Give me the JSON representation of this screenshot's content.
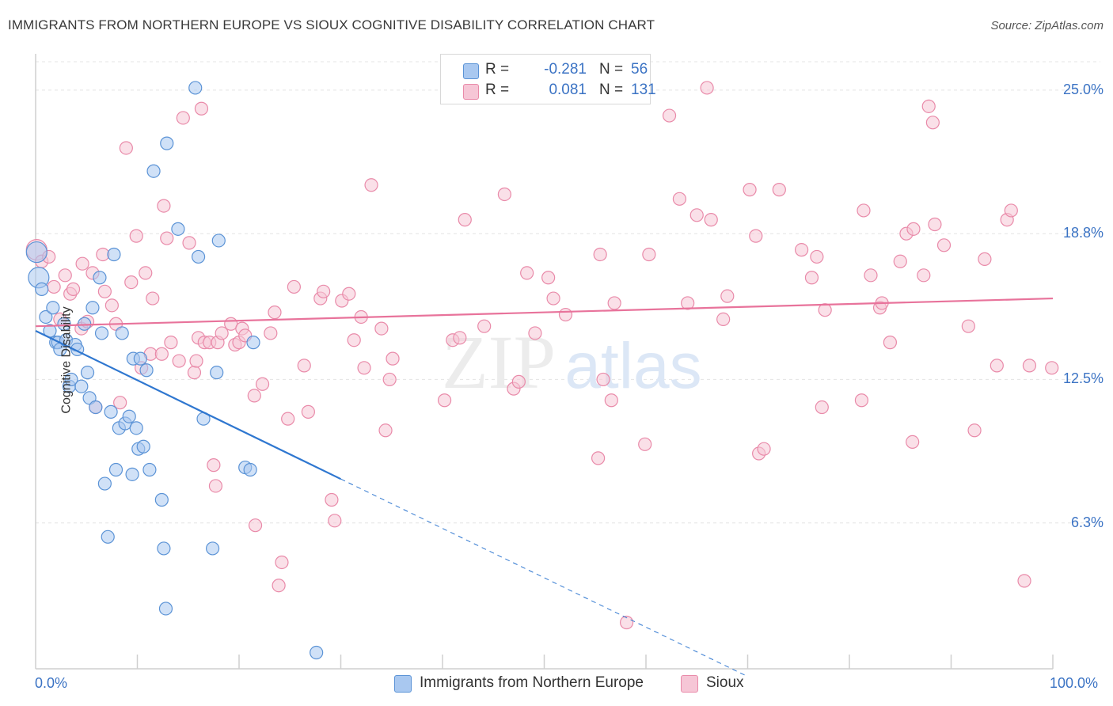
{
  "header": {
    "title": "IMMIGRANTS FROM NORTHERN EUROPE VS SIOUX COGNITIVE DISABILITY CORRELATION CHART",
    "source": "Source: ZipAtlas.com"
  },
  "watermark": {
    "part1": "ZIP",
    "part2": "atlas"
  },
  "legend": {
    "rows": [
      {
        "r_label": "R =",
        "r_value": "-0.281",
        "n_label": "N =",
        "n_value": "56",
        "color": "#a9c8f0"
      },
      {
        "r_label": "R =",
        "r_value": "0.081",
        "n_label": "N =",
        "n_value": "131",
        "color": "#f6bdd0"
      }
    ]
  },
  "colors": {
    "blue_fill": "#a9c8f0",
    "blue_stroke": "#5b93d6",
    "blue_line": "#2f77d0",
    "pink_fill": "#f6c6d6",
    "pink_stroke": "#e98aa9",
    "pink_line": "#e8739b",
    "axis_text": "#3b73c4",
    "grid": "#e4e4e4"
  },
  "chart_data": {
    "type": "scatter",
    "title": "IMMIGRANTS FROM NORTHERN EUROPE VS SIOUX COGNITIVE DISABILITY CORRELATION CHART",
    "xlabel": "",
    "ylabel": "Cognitive Disability",
    "xlim": [
      0,
      100
    ],
    "ylim": [
      0,
      26.5
    ],
    "x_tick_labels": {
      "left": "0.0%",
      "right": "100.0%"
    },
    "y_ticks": [
      {
        "value": 6.3,
        "label": "6.3%"
      },
      {
        "value": 12.5,
        "label": "12.5%"
      },
      {
        "value": 18.8,
        "label": "18.8%"
      },
      {
        "value": 25.0,
        "label": "25.0%"
      }
    ],
    "grid": true,
    "legend_position": "bottom",
    "series": [
      {
        "name": "Immigrants from Northern Europe",
        "color": "#a9c8f0",
        "trend": {
          "x0": 0,
          "y0": 14.6,
          "x1": 30,
          "y1": 8.2,
          "dash_to_x": 70
        },
        "points": [
          [
            0.1,
            18.0
          ],
          [
            0.3,
            16.9
          ],
          [
            0.6,
            16.4
          ],
          [
            1.0,
            15.2
          ],
          [
            1.4,
            14.6
          ],
          [
            1.7,
            15.6
          ],
          [
            2.0,
            14.1
          ],
          [
            2.2,
            14.1
          ],
          [
            2.4,
            13.8
          ],
          [
            2.8,
            14.9
          ],
          [
            3.0,
            14.2
          ],
          [
            3.3,
            12.2
          ],
          [
            3.5,
            12.5
          ],
          [
            3.9,
            14.0
          ],
          [
            4.1,
            13.8
          ],
          [
            4.5,
            12.2
          ],
          [
            4.8,
            14.9
          ],
          [
            5.1,
            12.8
          ],
          [
            5.3,
            11.7
          ],
          [
            5.6,
            15.6
          ],
          [
            5.9,
            11.3
          ],
          [
            6.3,
            16.9
          ],
          [
            6.5,
            14.5
          ],
          [
            6.8,
            8.0
          ],
          [
            7.1,
            5.7
          ],
          [
            7.4,
            11.1
          ],
          [
            7.7,
            17.9
          ],
          [
            7.9,
            8.6
          ],
          [
            8.2,
            10.4
          ],
          [
            8.5,
            14.5
          ],
          [
            8.8,
            10.6
          ],
          [
            9.2,
            10.9
          ],
          [
            9.5,
            8.4
          ],
          [
            9.6,
            13.4
          ],
          [
            9.9,
            10.4
          ],
          [
            10.1,
            9.5
          ],
          [
            10.3,
            13.4
          ],
          [
            10.6,
            9.6
          ],
          [
            10.9,
            12.9
          ],
          [
            11.2,
            8.6
          ],
          [
            11.6,
            21.5
          ],
          [
            12.4,
            7.3
          ],
          [
            12.6,
            5.2
          ],
          [
            12.8,
            2.6
          ],
          [
            12.9,
            22.7
          ],
          [
            14.0,
            19.0
          ],
          [
            15.7,
            25.1
          ],
          [
            16.0,
            17.8
          ],
          [
            16.5,
            10.8
          ],
          [
            17.4,
            5.2
          ],
          [
            17.8,
            12.8
          ],
          [
            18.0,
            18.5
          ],
          [
            20.6,
            8.7
          ],
          [
            21.1,
            8.6
          ],
          [
            21.4,
            14.1
          ],
          [
            27.6,
            0.7
          ]
        ]
      },
      {
        "name": "Sioux",
        "color": "#f6bdd0",
        "trend": {
          "x0": 0,
          "y0": 14.8,
          "x1": 100,
          "y1": 16.0
        },
        "points": [
          [
            0.1,
            18.1
          ],
          [
            0.6,
            17.6
          ],
          [
            1.3,
            17.8
          ],
          [
            1.8,
            16.5
          ],
          [
            2.4,
            15.1
          ],
          [
            2.9,
            17.0
          ],
          [
            3.4,
            16.2
          ],
          [
            3.7,
            16.4
          ],
          [
            4.5,
            14.7
          ],
          [
            4.6,
            17.5
          ],
          [
            5.1,
            15.0
          ],
          [
            5.6,
            17.1
          ],
          [
            5.9,
            11.3
          ],
          [
            6.6,
            17.9
          ],
          [
            6.8,
            16.3
          ],
          [
            7.5,
            15.7
          ],
          [
            7.9,
            14.9
          ],
          [
            8.3,
            11.5
          ],
          [
            8.9,
            22.5
          ],
          [
            9.4,
            16.7
          ],
          [
            9.9,
            18.7
          ],
          [
            10.4,
            13.0
          ],
          [
            10.8,
            17.1
          ],
          [
            11.3,
            13.6
          ],
          [
            11.5,
            16.0
          ],
          [
            12.4,
            13.6
          ],
          [
            12.6,
            20.0
          ],
          [
            12.9,
            18.6
          ],
          [
            13.3,
            14.1
          ],
          [
            14.1,
            13.3
          ],
          [
            14.5,
            23.8
          ],
          [
            15.1,
            18.4
          ],
          [
            15.6,
            12.8
          ],
          [
            15.8,
            13.3
          ],
          [
            16.0,
            14.3
          ],
          [
            16.3,
            24.2
          ],
          [
            16.6,
            14.1
          ],
          [
            17.1,
            14.1
          ],
          [
            17.5,
            8.8
          ],
          [
            17.7,
            7.9
          ],
          [
            17.9,
            14.1
          ],
          [
            18.3,
            14.5
          ],
          [
            19.2,
            14.9
          ],
          [
            19.6,
            14.0
          ],
          [
            20.0,
            14.1
          ],
          [
            20.3,
            14.7
          ],
          [
            20.6,
            14.4
          ],
          [
            21.5,
            11.8
          ],
          [
            21.6,
            6.2
          ],
          [
            22.3,
            12.3
          ],
          [
            23.1,
            14.5
          ],
          [
            23.5,
            15.4
          ],
          [
            23.9,
            3.6
          ],
          [
            24.2,
            4.6
          ],
          [
            24.8,
            10.8
          ],
          [
            25.4,
            16.5
          ],
          [
            26.4,
            13.1
          ],
          [
            26.8,
            11.1
          ],
          [
            28.0,
            16.0
          ],
          [
            28.3,
            16.3
          ],
          [
            29.1,
            7.3
          ],
          [
            29.4,
            6.4
          ],
          [
            30.1,
            15.9
          ],
          [
            30.8,
            16.2
          ],
          [
            31.3,
            14.2
          ],
          [
            32.0,
            15.2
          ],
          [
            32.3,
            13.0
          ],
          [
            33.0,
            20.9
          ],
          [
            34.0,
            14.7
          ],
          [
            34.4,
            10.3
          ],
          [
            34.8,
            12.5
          ],
          [
            35.1,
            13.4
          ],
          [
            40.2,
            11.6
          ],
          [
            41.0,
            14.2
          ],
          [
            41.7,
            14.3
          ],
          [
            42.2,
            19.4
          ],
          [
            44.1,
            14.8
          ],
          [
            46.1,
            20.5
          ],
          [
            47.0,
            12.1
          ],
          [
            47.5,
            12.4
          ],
          [
            48.3,
            17.1
          ],
          [
            49.1,
            14.5
          ],
          [
            50.4,
            16.9
          ],
          [
            50.9,
            16.0
          ],
          [
            52.1,
            15.3
          ],
          [
            55.3,
            9.1
          ],
          [
            55.5,
            17.9
          ],
          [
            55.8,
            12.5
          ],
          [
            56.6,
            11.6
          ],
          [
            56.9,
            15.8
          ],
          [
            58.1,
            2.0
          ],
          [
            59.9,
            9.7
          ],
          [
            60.3,
            17.9
          ],
          [
            62.3,
            23.9
          ],
          [
            63.3,
            20.3
          ],
          [
            64.1,
            15.8
          ],
          [
            65.0,
            19.6
          ],
          [
            66.0,
            25.1
          ],
          [
            66.4,
            19.4
          ],
          [
            67.6,
            15.1
          ],
          [
            68.0,
            16.1
          ],
          [
            70.2,
            20.7
          ],
          [
            70.8,
            18.7
          ],
          [
            71.1,
            9.3
          ],
          [
            71.6,
            9.5
          ],
          [
            73.1,
            20.7
          ],
          [
            75.3,
            18.1
          ],
          [
            76.3,
            16.9
          ],
          [
            76.8,
            17.8
          ],
          [
            77.3,
            11.3
          ],
          [
            77.6,
            15.5
          ],
          [
            81.2,
            11.6
          ],
          [
            81.4,
            19.8
          ],
          [
            82.1,
            17.0
          ],
          [
            83.0,
            15.6
          ],
          [
            83.2,
            15.8
          ],
          [
            84.0,
            14.1
          ],
          [
            85.0,
            17.6
          ],
          [
            85.6,
            18.8
          ],
          [
            86.2,
            9.8
          ],
          [
            86.3,
            19.0
          ],
          [
            87.3,
            17.0
          ],
          [
            87.8,
            24.3
          ],
          [
            88.2,
            23.6
          ],
          [
            88.4,
            19.2
          ],
          [
            89.3,
            18.3
          ],
          [
            91.7,
            14.8
          ],
          [
            92.3,
            10.3
          ],
          [
            93.3,
            17.7
          ],
          [
            94.5,
            13.1
          ],
          [
            95.5,
            19.4
          ],
          [
            95.9,
            19.8
          ],
          [
            97.2,
            3.8
          ],
          [
            97.7,
            13.1
          ],
          [
            99.9,
            13.0
          ]
        ]
      }
    ]
  },
  "bottom_legend": [
    {
      "label": "Immigrants from Northern Europe",
      "color": "#a9c8f0"
    },
    {
      "label": "Sioux",
      "color": "#f6bdd0"
    }
  ]
}
